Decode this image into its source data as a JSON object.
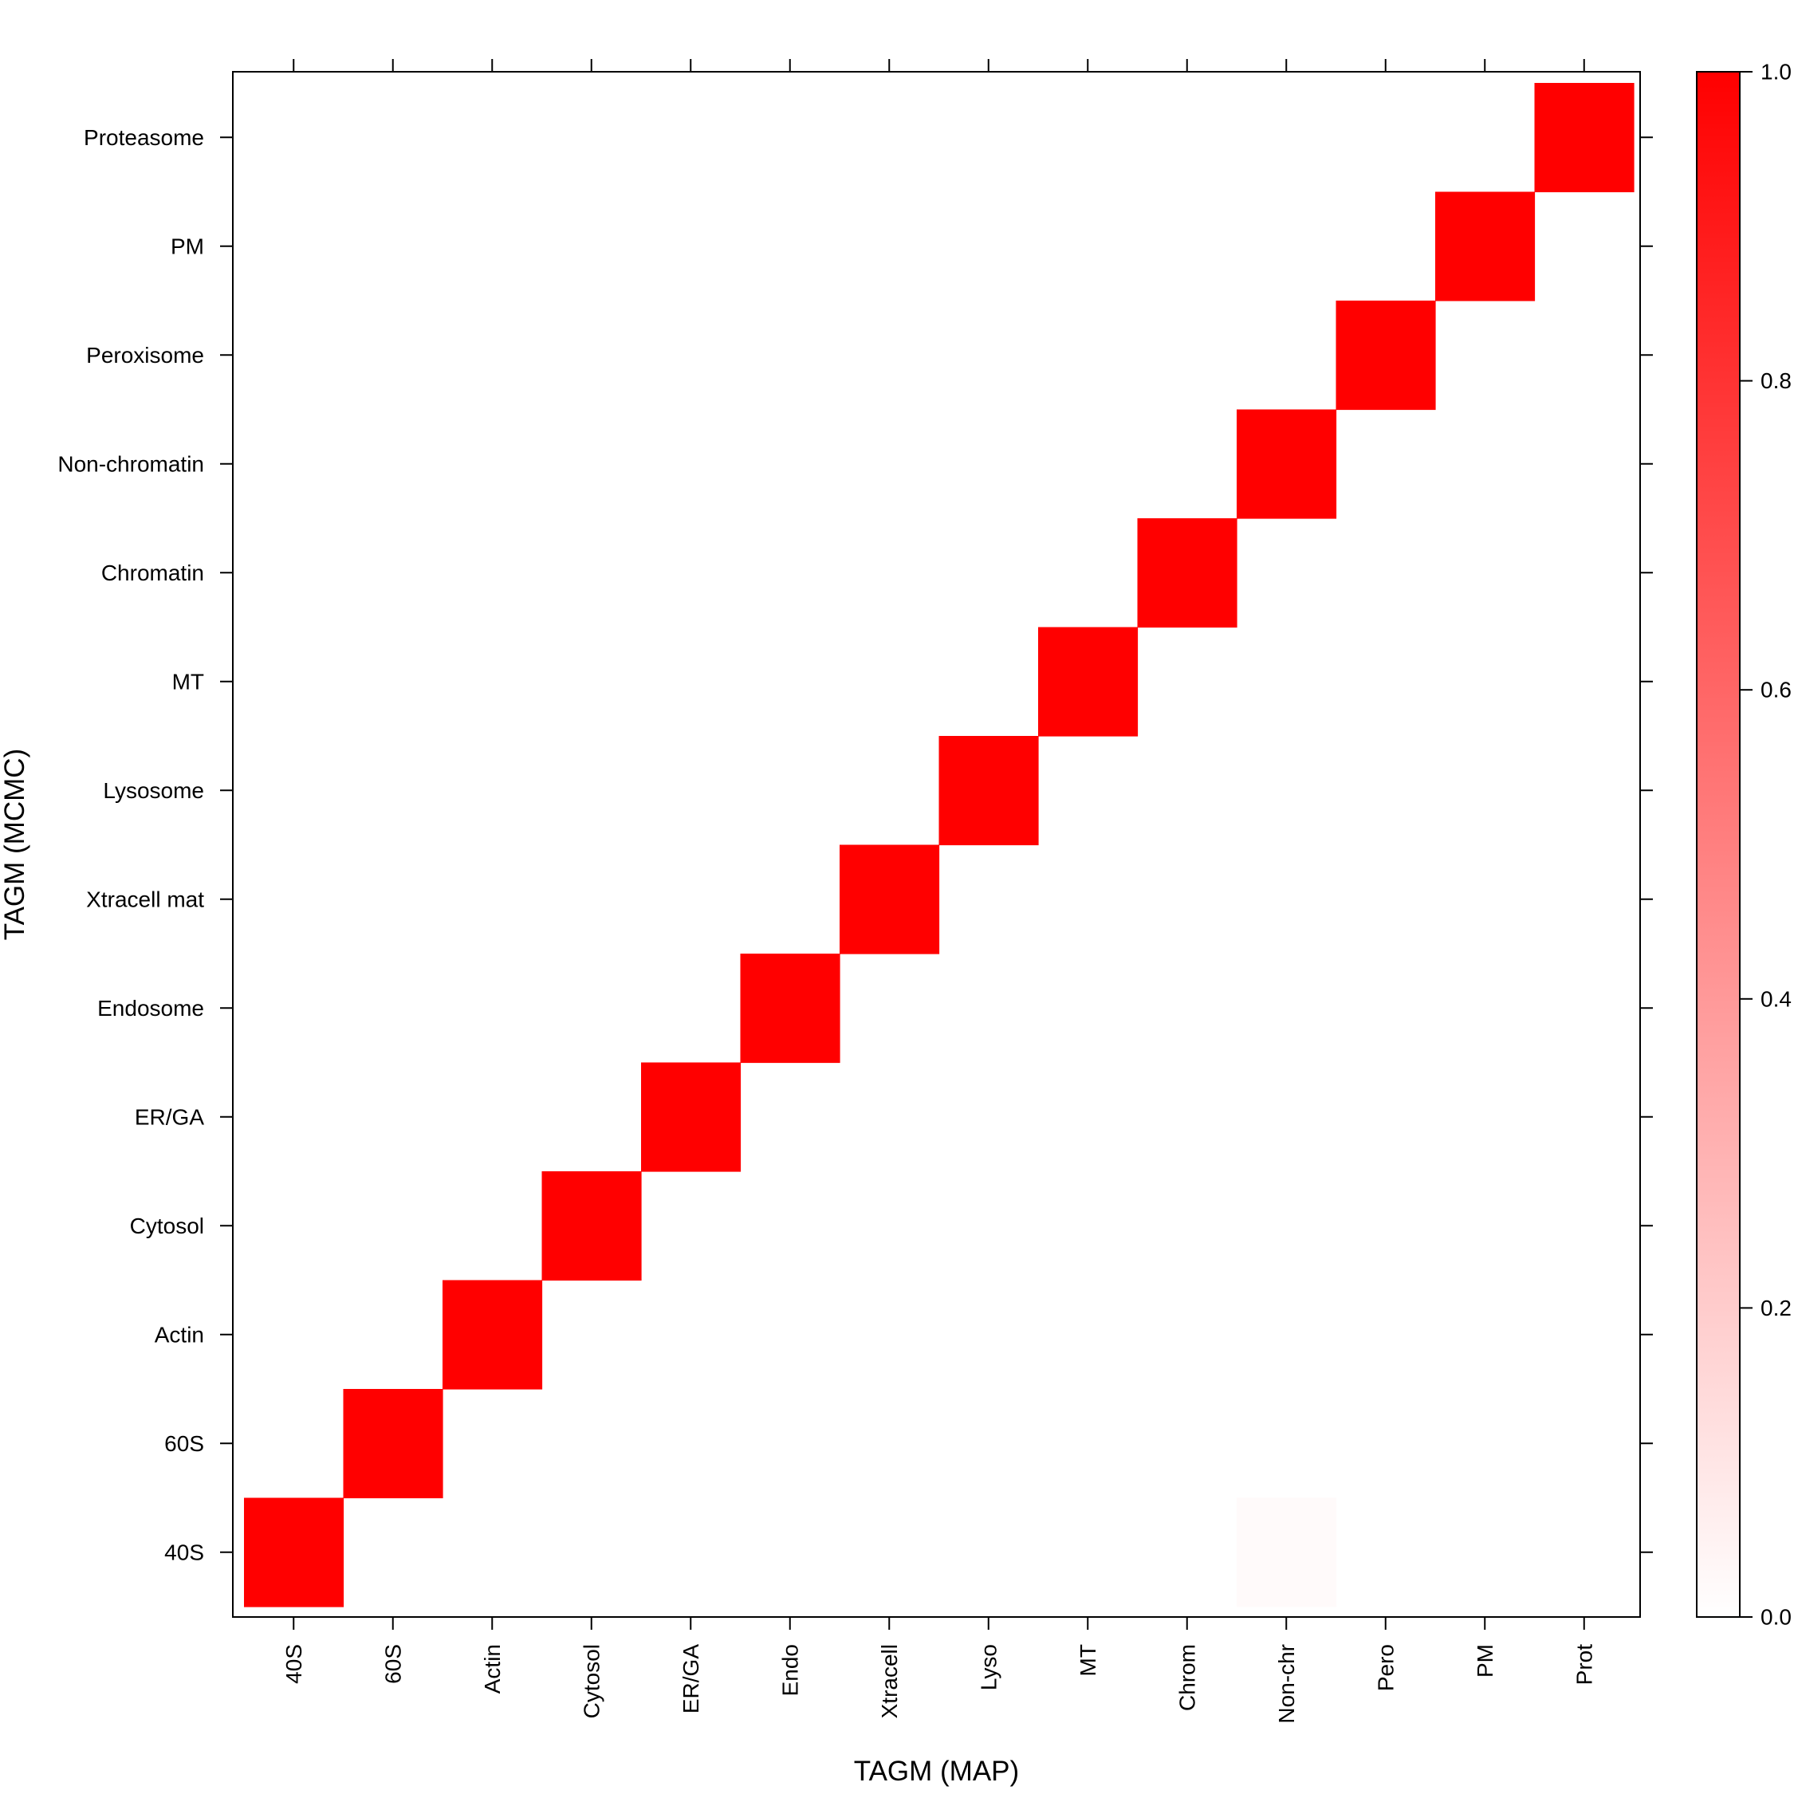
{
  "chart_data": {
    "type": "heatmap",
    "xlabel": "TAGM (MAP)",
    "ylabel": "TAGM (MCMC)",
    "x_categories": [
      "40S",
      "60S",
      "Actin",
      "Cytosol",
      "ER/GA",
      "Endo",
      "Xtracell",
      "Lyso",
      "MT",
      "Chrom",
      "Non-chr",
      "Pero",
      "PM",
      "Prot"
    ],
    "y_categories": [
      "40S",
      "60S",
      "Actin",
      "Cytosol",
      "ER/GA",
      "Endosome",
      "Xtracell mat",
      "Lysosome",
      "MT",
      "Chromatin",
      "Non-chromatin",
      "Peroxisome",
      "PM",
      "Proteasome"
    ],
    "cells": [
      {
        "x": "40S",
        "y": "40S",
        "value": 1.0
      },
      {
        "x": "Non-chr",
        "y": "40S",
        "value": 0.02
      },
      {
        "x": "60S",
        "y": "60S",
        "value": 1.0
      },
      {
        "x": "Actin",
        "y": "Actin",
        "value": 1.0
      },
      {
        "x": "Cytosol",
        "y": "Cytosol",
        "value": 1.0
      },
      {
        "x": "ER/GA",
        "y": "ER/GA",
        "value": 1.0
      },
      {
        "x": "Endo",
        "y": "Endosome",
        "value": 1.0
      },
      {
        "x": "Xtracell",
        "y": "Xtracell mat",
        "value": 1.0
      },
      {
        "x": "Lyso",
        "y": "Lysosome",
        "value": 1.0
      },
      {
        "x": "MT",
        "y": "MT",
        "value": 1.0
      },
      {
        "x": "Chrom",
        "y": "Chromatin",
        "value": 1.0
      },
      {
        "x": "Non-chr",
        "y": "Non-chromatin",
        "value": 1.0
      },
      {
        "x": "Pero",
        "y": "Peroxisome",
        "value": 1.0
      },
      {
        "x": "PM",
        "y": "PM",
        "value": 1.0
      },
      {
        "x": "Prot",
        "y": "Proteasome",
        "value": 1.0
      }
    ],
    "colorbar": {
      "range": [
        0.0,
        1.0
      ],
      "ticks": [
        "0.0",
        "0.2",
        "0.4",
        "0.6",
        "0.8",
        "1.0"
      ],
      "low_color": "#ffffff",
      "high_color": "#ff0000"
    },
    "grid": false
  }
}
